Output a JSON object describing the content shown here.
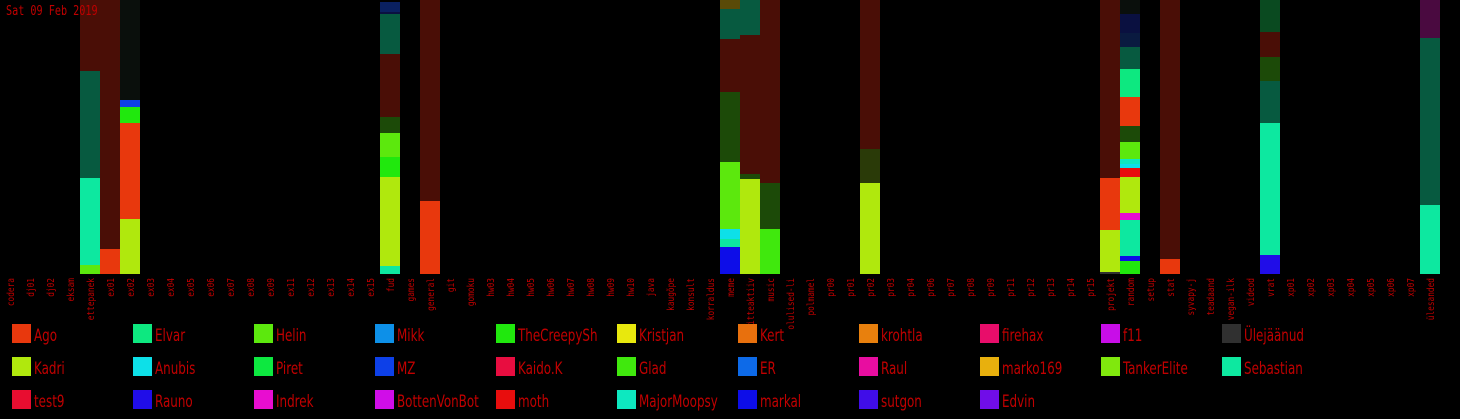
{
  "date": "Sat 09 Feb 2019",
  "chart_data": {
    "type": "bar",
    "stacked": true,
    "categories": [
      "codera",
      "dj01",
      "dj02",
      "eksam",
      "ettepanek",
      "ex01",
      "ex02",
      "ex03",
      "ex04",
      "ex05",
      "ex06",
      "ex07",
      "ex08",
      "ex09",
      "ex11",
      "ex12",
      "ex13",
      "ex14",
      "ex15",
      "fud",
      "games",
      "general",
      "git",
      "gomoku",
      "hw03",
      "hw04",
      "hw05",
      "hw06",
      "hw07",
      "hw08",
      "hw09",
      "hw10",
      "java",
      "kaugõpe",
      "konsult",
      "korraldus",
      "meme",
      "mitteaktiiv",
      "music",
      "olulised-li",
      "polmamel",
      "pr00",
      "pr01",
      "pr02",
      "pr03",
      "pr04",
      "pr06",
      "pr07",
      "pr08",
      "pr09",
      "pr11",
      "pr12",
      "pr13",
      "pr14",
      "pr15",
      "projekt",
      "random",
      "setup",
      "stat",
      "syvapy-j",
      "teadaand",
      "vegan-ilk",
      "videod",
      "vrat",
      "xp01",
      "xp02",
      "xp03",
      "xp04",
      "xp05",
      "xp06",
      "xp07",
      "ülesanded"
    ],
    "ylim": [
      0,
      274
    ],
    "legend": [
      {
        "name": "Ago",
        "color": "#e8380d"
      },
      {
        "name": "Elvar",
        "color": "#0de880"
      },
      {
        "name": "Helin",
        "color": "#5ce80d"
      },
      {
        "name": "Mikk",
        "color": "#0d90e8"
      },
      {
        "name": "TheCreepySh",
        "color": "#20e80d"
      },
      {
        "name": "Kristjan",
        "color": "#e8e80d"
      },
      {
        "name": "Kert",
        "color": "#e8700d"
      },
      {
        "name": "krohtla",
        "color": "#e8800d"
      },
      {
        "name": "firehax",
        "color": "#e80d6a"
      },
      {
        "name": "f11",
        "color": "#c80de8"
      },
      {
        "name": "Ülejäänud",
        "color": "#303030"
      },
      {
        "name": "Kadri",
        "color": "#b0e80d"
      },
      {
        "name": "Anubis",
        "color": "#0de0e8"
      },
      {
        "name": "Piret",
        "color": "#0de840"
      },
      {
        "name": "MZ",
        "color": "#0d40e8"
      },
      {
        "name": "Kaido.K",
        "color": "#e80d40"
      },
      {
        "name": "Glad",
        "color": "#40e80d"
      },
      {
        "name": "ER",
        "color": "#0d6ae8"
      },
      {
        "name": "Raul",
        "color": "#e80da0"
      },
      {
        "name": "marko169",
        "color": "#e8b00d"
      },
      {
        "name": "TankerElite",
        "color": "#80e80d"
      },
      {
        "name": "Sebastian",
        "color": "#0de8a0"
      },
      {
        "name": "test9",
        "color": "#e80d30"
      },
      {
        "name": "Rauno",
        "color": "#200de8"
      },
      {
        "name": "Indrek",
        "color": "#e80dd0"
      },
      {
        "name": "BottenVonBot",
        "color": "#d00de8"
      },
      {
        "name": "moth",
        "color": "#e80d0d"
      },
      {
        "name": "MajorMoopsy",
        "color": "#0de8c0"
      },
      {
        "name": "markal",
        "color": "#0d0de8"
      },
      {
        "name": "sutgon",
        "color": "#400de8"
      },
      {
        "name": "Edvin",
        "color": "#700de8"
      }
    ],
    "bars": {
      "ettepanek": [
        [
          9,
          "#5ce80d"
        ],
        [
          87,
          "#0de8a0"
        ],
        [
          107,
          "#075a40"
        ],
        [
          71,
          "#4a0e06"
        ]
      ],
      "ex01": [
        [
          25,
          "#e8380d"
        ],
        [
          249,
          "#4a0e06"
        ]
      ],
      "ex02": [
        [
          55,
          "#b0e80d"
        ],
        [
          96,
          "#e8380d"
        ],
        [
          16,
          "#20e80d"
        ],
        [
          7,
          "#0d40e8"
        ],
        [
          100,
          "#0a0f0c"
        ]
      ],
      "fud": [
        [
          8,
          "#0de8a0"
        ],
        [
          89,
          "#b0e80d"
        ],
        [
          20,
          "#20e80d"
        ],
        [
          24,
          "#5ce80d"
        ],
        [
          16,
          "#1c4a08"
        ],
        [
          63,
          "#4a0e06"
        ],
        [
          40,
          "#075a40"
        ],
        [
          2,
          "#0a1040"
        ],
        [
          10,
          "#0a2060"
        ]
      ],
      "general": [
        [
          73,
          "#e8380d"
        ],
        [
          201,
          "#4a0e06"
        ]
      ],
      "meme": [
        [
          27,
          "#0d0de8"
        ],
        [
          8,
          "#0de8a0"
        ],
        [
          10,
          "#0de0e8"
        ],
        [
          67,
          "#5ce80d"
        ],
        [
          70,
          "#1c4a08"
        ],
        [
          45,
          "#4a0e06"
        ],
        [
          8,
          "#4a0e06"
        ],
        [
          30,
          "#075a40"
        ],
        [
          9,
          "#5a4a08"
        ]
      ],
      "mitteaktiiv": [
        [
          95,
          "#b0e80d"
        ],
        [
          5,
          "#1c4a08"
        ],
        [
          139,
          "#4a0e06"
        ],
        [
          35,
          "#075a40"
        ]
      ],
      "music": [
        [
          45,
          "#40e80d"
        ],
        [
          46,
          "#1c4a08"
        ],
        [
          183,
          "#4a0e06"
        ]
      ],
      "pr02": [
        [
          91,
          "#b0e80d"
        ],
        [
          34,
          "#2a3a08"
        ],
        [
          149,
          "#4a0e06"
        ]
      ],
      "projekt": [
        [
          2,
          "#303030"
        ],
        [
          42,
          "#b0e80d"
        ],
        [
          52,
          "#e8380d"
        ],
        [
          178,
          "#4a0e06"
        ]
      ],
      "random": [
        [
          13,
          "#20e80d"
        ],
        [
          5,
          "#0d0de8"
        ],
        [
          36,
          "#0de8a0"
        ],
        [
          7,
          "#e80dd0"
        ],
        [
          36,
          "#b0e80d"
        ],
        [
          9,
          "#e80d0d"
        ],
        [
          4,
          "#0de0e8"
        ],
        [
          5,
          "#0de8c0"
        ],
        [
          17,
          "#5ce80d"
        ],
        [
          16,
          "#1c4a08"
        ],
        [
          29,
          "#e8380d"
        ],
        [
          28,
          "#0de880"
        ],
        [
          22,
          "#075a40"
        ],
        [
          14,
          "#0a1a40"
        ],
        [
          19,
          "#0a1040"
        ],
        [
          14,
          "#0a0f0c"
        ]
      ],
      "stat": [
        [
          15,
          "#e8380d"
        ],
        [
          259,
          "#4a0e06"
        ]
      ],
      "vrat": [
        [
          19,
          "#200de8"
        ],
        [
          132,
          "#0de8a0"
        ],
        [
          42,
          "#075a40"
        ],
        [
          24,
          "#1c4a08"
        ],
        [
          25,
          "#4a0e06"
        ],
        [
          32,
          "#0a4a20"
        ]
      ],
      "ülesanded": [
        [
          69,
          "#0de8a0"
        ],
        [
          167,
          "#075a40"
        ],
        [
          38,
          "#4a0a40"
        ]
      ]
    }
  }
}
